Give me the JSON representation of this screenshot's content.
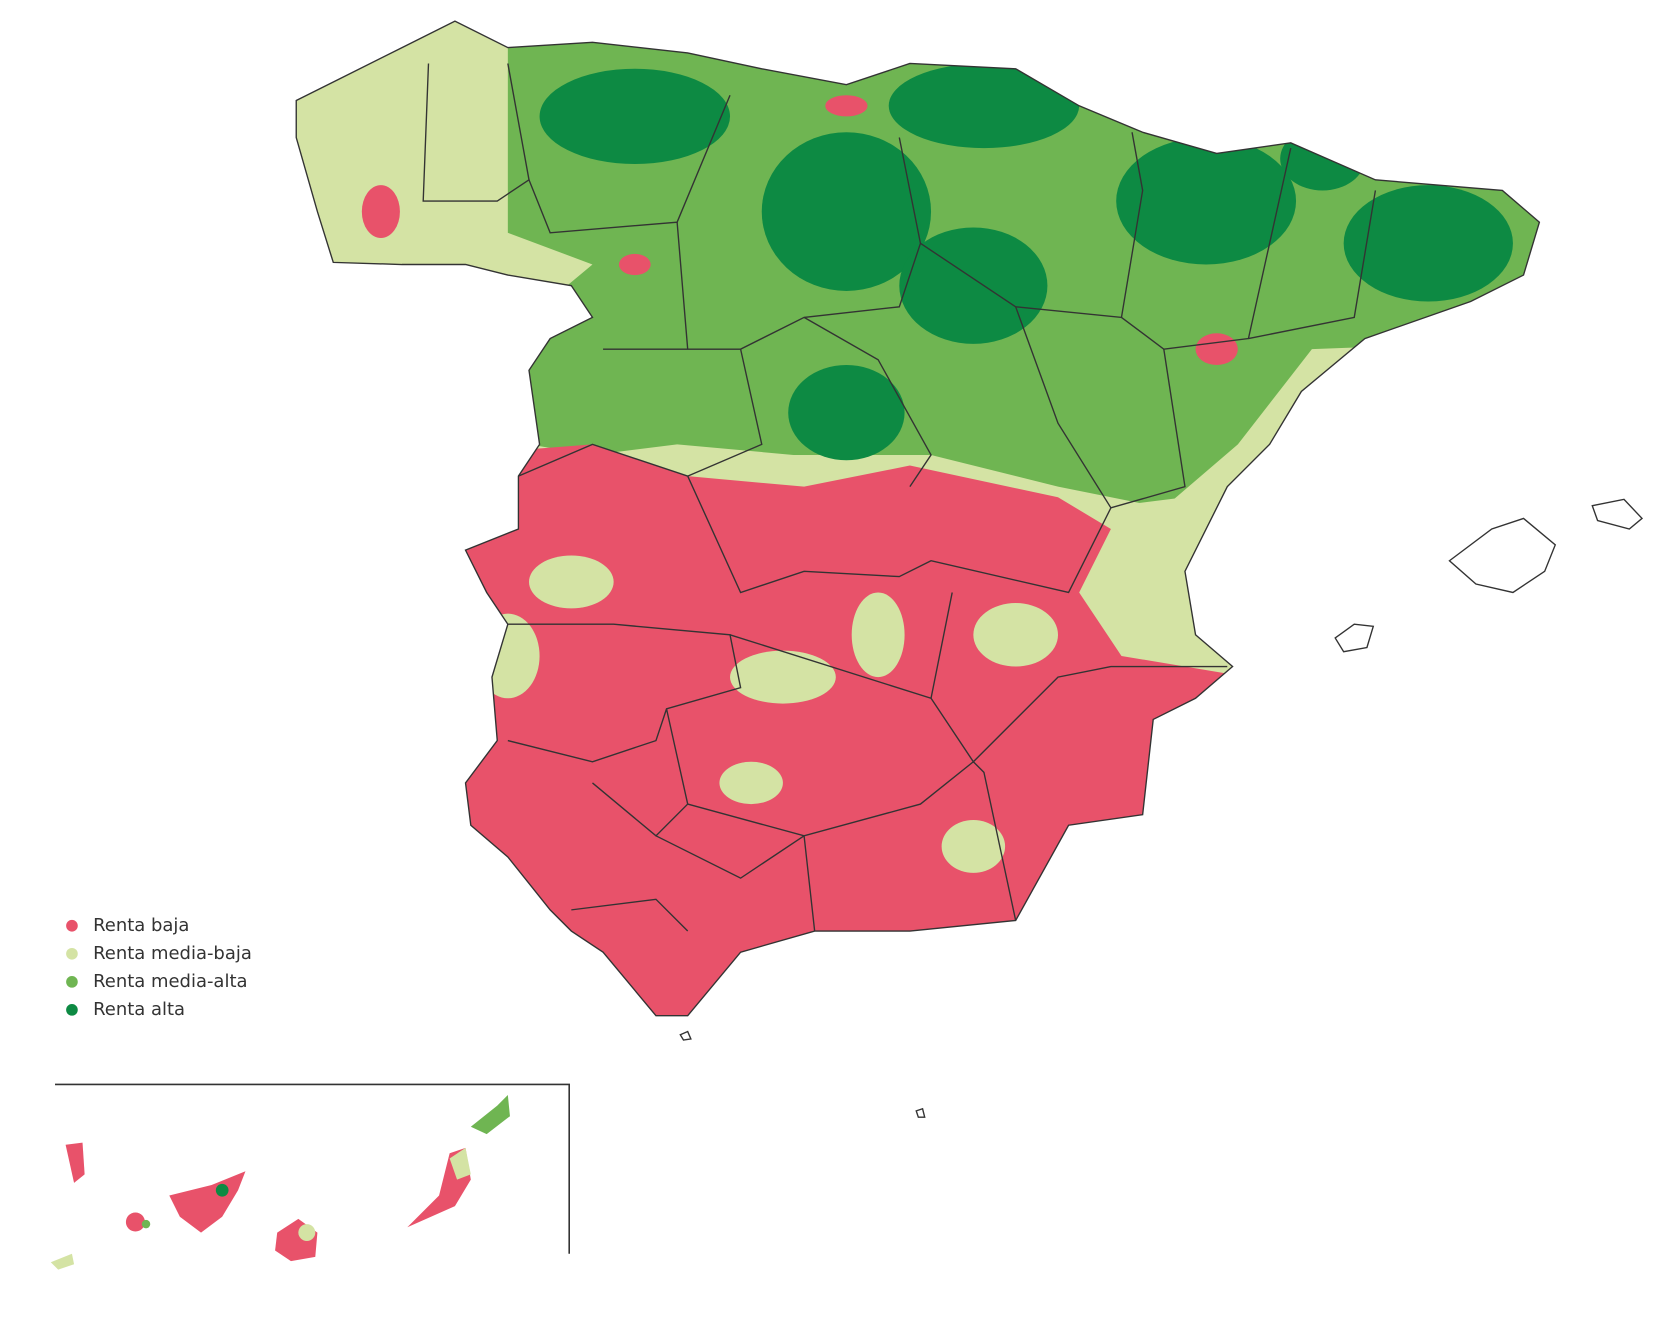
{
  "legend": {
    "items": [
      {
        "label": "Renta baja",
        "color": "#e8526a"
      },
      {
        "label": "Renta media-baja",
        "color": "#d4e3a4"
      },
      {
        "label": "Renta media-alta",
        "color": "#6fb552"
      },
      {
        "label": "Renta alta",
        "color": "#0d8a43"
      }
    ]
  }
}
